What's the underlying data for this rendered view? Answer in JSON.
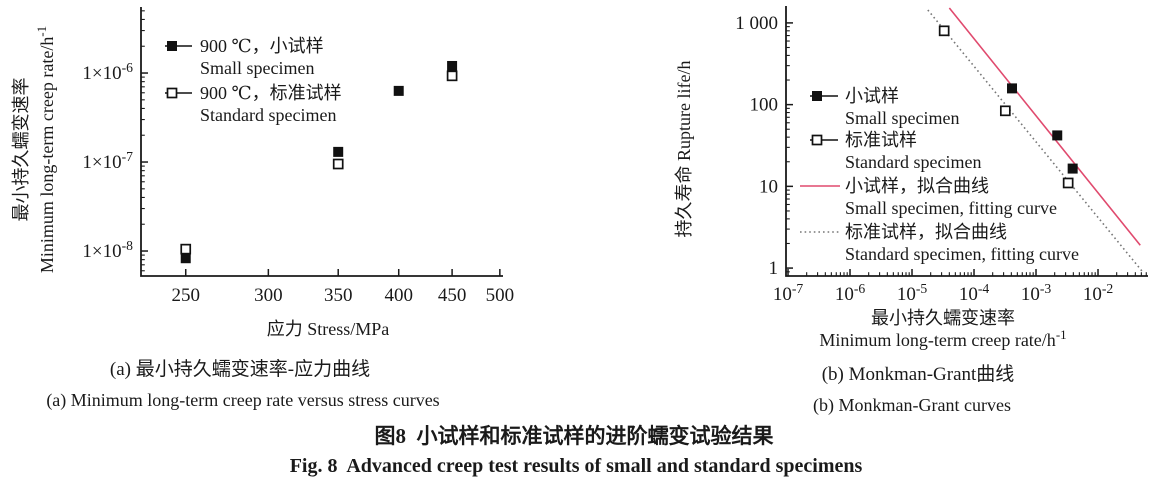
{
  "figure": {
    "caption_cn": "图8  小试样和标准试样的进阶蠕变试验结果",
    "caption_en": "Fig. 8  Advanced creep test results of small and standard specimens"
  },
  "colors": {
    "axis": "#1a1a1a",
    "small_fit_red": "#e04a6e",
    "standard_fit_gray": "#777777"
  },
  "chart_data": [
    {
      "type": "scatter",
      "panel": "a",
      "title_cn": "(a) 最小持久蠕变速率-应力曲线",
      "title_en": "(a) Minimum long-term creep rate versus stress curves",
      "x_axis": {
        "label": "应力 Stress/MPa",
        "scale": "log",
        "domain": [
          226.5,
          503.5
        ],
        "ticks": [
          {
            "v": 250,
            "label": "250"
          },
          {
            "v": 300,
            "label": "300"
          },
          {
            "v": 350,
            "label": "350"
          },
          {
            "v": 400,
            "label": "400"
          },
          {
            "v": 450,
            "label": "450"
          },
          {
            "v": 500,
            "label": "500"
          }
        ],
        "minor": false
      },
      "y_axis": {
        "label_lines": [
          "最小持久蠕变速率",
          "Minimum long-term creep rate/h^{-1}"
        ],
        "scale": "log",
        "domain": [
          5.24e-09,
          5.52e-06
        ],
        "ticks": [
          {
            "v": 1e-06,
            "label": "1×10^{-6}"
          },
          {
            "v": 1e-07,
            "label": "1×10^{-7}"
          },
          {
            "v": 1e-08,
            "label": "1×10^{-8}"
          }
        ],
        "minor": true
      },
      "series": [
        {
          "id": "small-specimen",
          "legend_cn": "900 ℃，小试样",
          "legend_en": "Small specimen",
          "marker": "filled-square",
          "color": "#111111",
          "points": [
            [
              250,
              8.3e-09
            ],
            [
              350,
              1.3e-07
            ],
            [
              400,
              6.3e-07
            ],
            [
              450,
              1.2e-06
            ]
          ]
        },
        {
          "id": "standard-specimen",
          "legend_cn": "900 ℃，标准试样",
          "legend_en": "Standard specimen",
          "marker": "open-square",
          "color": "#111111",
          "points": [
            [
              250,
              1.05e-08
            ],
            [
              350,
              9.5e-08
            ],
            [
              450,
              9.3e-07
            ]
          ]
        }
      ]
    },
    {
      "type": "scatter-line",
      "panel": "b",
      "title_cn": "(b) Monkman-Grant曲线",
      "title_en": "(b) Monkman-Grant curves",
      "x_axis": {
        "label_lines": [
          "最小持久蠕变速率",
          "Minimum long-term creep rate/h^{-1}"
        ],
        "scale": "log",
        "domain": [
          9.28e-08,
          0.064
        ],
        "ticks": [
          {
            "v": 1e-07,
            "label": "10^{-7}"
          },
          {
            "v": 1e-06,
            "label": "10^{-6}"
          },
          {
            "v": 1e-05,
            "label": "10^{-5}"
          },
          {
            "v": 0.0001,
            "label": "10^{-4}"
          },
          {
            "v": 0.001,
            "label": "10^{-3}"
          },
          {
            "v": 0.01,
            "label": "10^{-2}"
          }
        ],
        "minor": true
      },
      "y_axis": {
        "label": "持久寿命 Rupture life/h",
        "scale": "log",
        "domain": [
          0.8,
          1610
        ],
        "ticks": [
          {
            "v": 1000,
            "label": "1 000"
          },
          {
            "v": 100,
            "label": "100"
          },
          {
            "v": 10,
            "label": "10"
          },
          {
            "v": 1,
            "label": "1"
          }
        ],
        "minor": true
      },
      "series": [
        {
          "id": "small-specimen",
          "legend_cn": "小试样",
          "legend_en": "Small specimen",
          "marker": "filled-square",
          "color": "#111111",
          "points": [
            [
              0.00041,
              158
            ],
            [
              0.0022,
              42
            ],
            [
              0.0039,
              16.5
            ]
          ]
        },
        {
          "id": "standard-specimen",
          "legend_cn": "标准试样",
          "legend_en": "Standard specimen",
          "marker": "open-square",
          "color": "#111111",
          "points": [
            [
              3.3e-05,
              800
            ],
            [
              0.00032,
              84
            ],
            [
              0.0033,
              11
            ]
          ]
        },
        {
          "id": "small-fitting-curve",
          "legend_cn": "小试样，拟合曲线",
          "legend_en": "Small specimen, fitting curve",
          "line": "solid",
          "color": "#e04a6e",
          "points": [
            [
              4e-05,
              1520
            ],
            [
              0.048,
              1.9
            ]
          ]
        },
        {
          "id": "standard-fitting-curve",
          "legend_cn": "标准试样，拟合曲线",
          "legend_en": "Standard specimen, fitting curve",
          "line": "dotted",
          "color": "#777777",
          "points": [
            [
              1.8e-05,
              1440
            ],
            [
              0.053,
              0.89
            ]
          ]
        }
      ]
    }
  ]
}
